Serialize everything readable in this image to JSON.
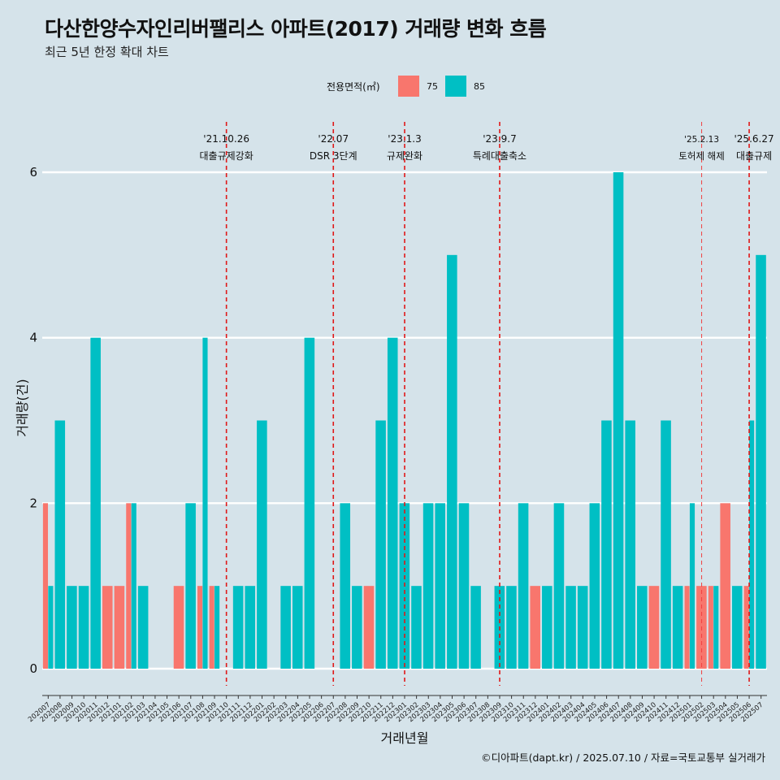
{
  "chart_data": {
    "type": "bar",
    "title": "다산한양수자인리버팰리스 아파트(2017) 거래량 변화 흐름",
    "subtitle": "최근 5년 한정 확대 차트",
    "xlabel": "거래년월",
    "ylabel": "거래량(건)",
    "ylim": [
      0,
      6
    ],
    "yticks": [
      0,
      2,
      4,
      6
    ],
    "legend_title": "전용면적(㎡)",
    "legend_position": "top",
    "categories": [
      "202007",
      "202008",
      "202009",
      "202010",
      "202011",
      "202012",
      "202101",
      "202102",
      "202103",
      "202104",
      "202105",
      "202106",
      "202107",
      "202108",
      "202109",
      "202110",
      "202111",
      "202112",
      "202201",
      "202202",
      "202203",
      "202204",
      "202205",
      "202206",
      "202207",
      "202208",
      "202209",
      "202210",
      "202211",
      "202212",
      "202301",
      "202302",
      "202303",
      "202304",
      "202305",
      "202306",
      "202307",
      "202308",
      "202309",
      "202310",
      "202311",
      "202312",
      "202401",
      "202402",
      "202403",
      "202404",
      "202405",
      "202406",
      "202407",
      "202408",
      "202409",
      "202410",
      "202411",
      "202412",
      "202501",
      "202502",
      "202503",
      "202504",
      "202505",
      "202506",
      "202507"
    ],
    "series": [
      {
        "name": "75",
        "color": "#f8766d",
        "values": [
          2,
          0,
          0,
          0,
          0,
          1,
          1,
          2,
          0,
          0,
          0,
          1,
          0,
          1,
          1,
          0,
          0,
          0,
          0,
          0,
          0,
          0,
          0,
          0,
          0,
          0,
          0,
          1,
          0,
          0,
          0,
          0,
          0,
          0,
          0,
          0,
          0,
          0,
          0,
          0,
          0,
          1,
          0,
          0,
          0,
          0,
          0,
          0,
          0,
          0,
          0,
          1,
          0,
          0,
          1,
          1,
          1,
          2,
          0,
          1,
          0
        ]
      },
      {
        "name": "85",
        "color": "#00bfc4",
        "values": [
          1,
          3,
          1,
          1,
          4,
          0,
          0,
          2,
          1,
          0,
          0,
          0,
          2,
          4,
          1,
          0,
          1,
          1,
          3,
          0,
          1,
          1,
          4,
          0,
          0,
          2,
          1,
          0,
          3,
          4,
          2,
          1,
          2,
          2,
          5,
          2,
          1,
          0,
          1,
          1,
          2,
          0,
          1,
          2,
          1,
          1,
          2,
          3,
          6,
          3,
          1,
          0,
          3,
          1,
          2,
          0,
          1,
          0,
          1,
          3,
          5
        ]
      }
    ],
    "events": [
      {
        "date": "'21.10.26",
        "label": "대출규제강화",
        "category": "202110"
      },
      {
        "date": "'22.07",
        "label": "DSR 3단계",
        "category": "202207"
      },
      {
        "date": "'23.1.3",
        "label": "규제완화",
        "category": "202301"
      },
      {
        "date": "'23.9.7",
        "label": "특례대출축소",
        "category": "202309"
      },
      {
        "date": "'25.2.13",
        "label": "토허제 해제",
        "category": "202502"
      },
      {
        "date": "'25.6.27",
        "label": "대출규제",
        "category": "202506"
      }
    ]
  },
  "footer": "©디아파트(dapt.kr) / 2025.07.10 / 자료=국토교통부 실거래가"
}
